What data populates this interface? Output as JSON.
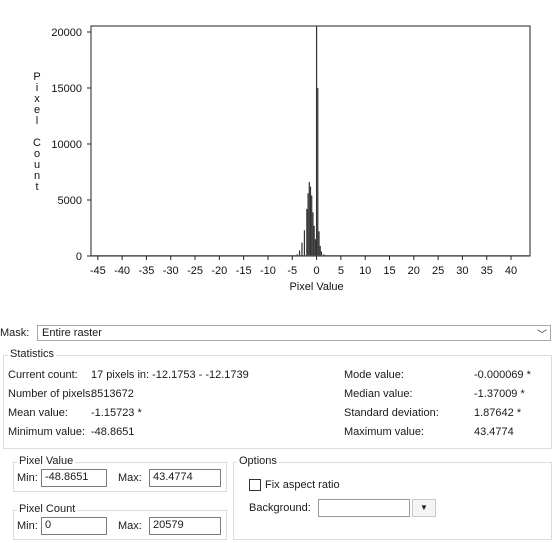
{
  "chart_data": {
    "type": "bar",
    "xlabel": "Pixel Value",
    "ylabel": "Pixel Count",
    "xlim": [
      -48.8651,
      43.4774
    ],
    "ylim": [
      0,
      20579
    ],
    "x_ticks": [
      -45,
      -40,
      -35,
      -30,
      -25,
      -20,
      -15,
      -10,
      -5,
      0,
      5,
      10,
      15,
      20,
      25,
      30,
      35,
      40
    ],
    "y_ticks": [
      0,
      5000,
      10000,
      15000,
      20000
    ],
    "x": [
      -4.5,
      -4,
      -3.5,
      -3,
      -2.5,
      -2,
      -1.75,
      -1.5,
      -1.25,
      -1,
      -0.75,
      -0.5,
      -0.25,
      0,
      0.25,
      0.5,
      0.75,
      1,
      1.5,
      2,
      2.5,
      3,
      3.5,
      4
    ],
    "values": [
      30,
      150,
      500,
      1200,
      2300,
      4200,
      5600,
      6600,
      6200,
      5400,
      3900,
      2700,
      1500,
      20579,
      15000,
      2200,
      900,
      400,
      150,
      70,
      40,
      25,
      15,
      10
    ]
  },
  "mask": {
    "label": "Mask:",
    "value": "Entire raster",
    "chevron": "﹀"
  },
  "statistics": {
    "title": "Statistics",
    "current_count_label": "Current count:",
    "current_count_value": "17 pixels in: -12.1753 - -12.1739",
    "num_pixels_label": "Number of pixels:",
    "num_pixels_value": "8513672",
    "mean_label": "Mean value:",
    "mean_value": "-1.15723 *",
    "min_label": "Minimum value:",
    "min_value": "-48.8651",
    "mode_label": "Mode value:",
    "mode_value": "-0.000069 *",
    "median_label": "Median value:",
    "median_value": "-1.37009 *",
    "std_label": "Standard deviation:",
    "std_value": "1.87642 *",
    "max_label": "Maximum value:",
    "max_value": "43.4774"
  },
  "pixel_value": {
    "title": "Pixel Value",
    "min_label": "Min:",
    "min_value": "-48.8651",
    "max_label": "Max:",
    "max_value": "43.4774"
  },
  "pixel_count": {
    "title": "Pixel Count",
    "min_label": "Min:",
    "min_value": "0",
    "max_label": "Max:",
    "max_value": "20579"
  },
  "options": {
    "title": "Options",
    "fix_aspect_label": "Fix aspect ratio",
    "fix_aspect_checked": false,
    "background_label": "Background:",
    "background_value": "",
    "dropdown_icon": "▼"
  }
}
